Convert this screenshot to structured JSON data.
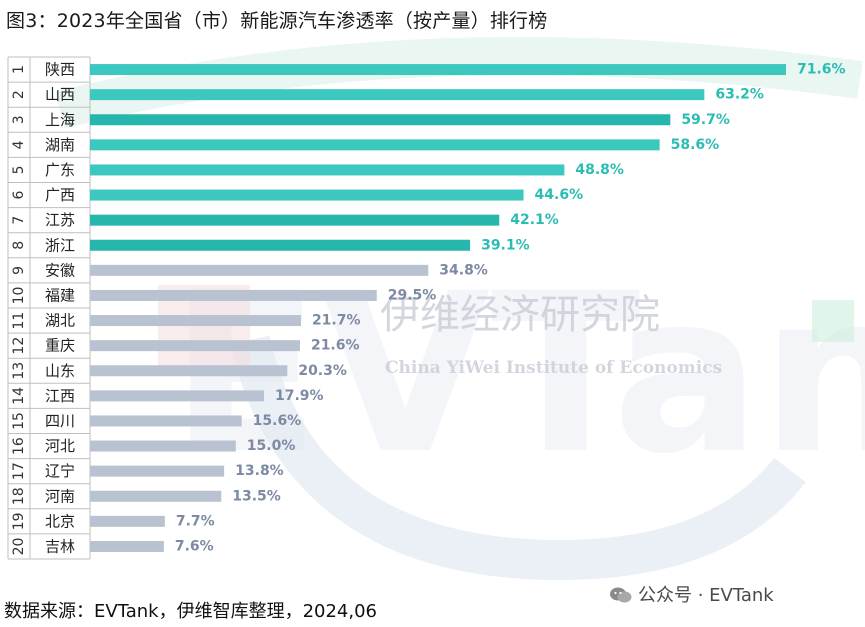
{
  "title": "图3：2023年全国省（市）新能源汽车渗透率（按产量）排行榜",
  "source": "数据来源：EVTank，伊维智库整理，2024,06",
  "wechat_label": "公众号 · EVTank",
  "watermark": {
    "logo": "EVTank",
    "cn_name": "伊维经济研究院",
    "en_name": "China YiWei Institute of Economics"
  },
  "colors": {
    "teal_light": "#3cc8be",
    "teal_dark": "#27b6ac",
    "gray": "#b9c2d0",
    "label_teal": "#2bbdb3",
    "label_gray": "#7d8aa3"
  },
  "chart_data": {
    "type": "bar",
    "orientation": "horizontal",
    "title": "图3：2023年全国省（市）新能源汽车渗透率（按产量）排行榜",
    "ranks": [
      "1",
      "2",
      "3",
      "4",
      "5",
      "6",
      "7",
      "8",
      "9",
      "10",
      "11",
      "12",
      "13",
      "14",
      "15",
      "16",
      "17",
      "18",
      "19",
      "20"
    ],
    "categories": [
      "陕西",
      "山西",
      "上海",
      "湖南",
      "广东",
      "广西",
      "江苏",
      "浙江",
      "安徽",
      "福建",
      "湖北",
      "重庆",
      "山东",
      "江西",
      "四川",
      "河北",
      "辽宁",
      "河南",
      "北京",
      "吉林"
    ],
    "values": [
      71.6,
      63.2,
      59.7,
      58.6,
      48.8,
      44.6,
      42.1,
      39.1,
      34.8,
      29.5,
      21.7,
      21.6,
      20.3,
      17.9,
      15.6,
      15.0,
      13.8,
      13.5,
      7.7,
      7.6
    ],
    "value_labels": [
      "71.6%",
      "63.2%",
      "59.7%",
      "58.6%",
      "48.8%",
      "44.6%",
      "42.1%",
      "39.1%",
      "34.8%",
      "29.5%",
      "21.7%",
      "21.6%",
      "20.3%",
      "17.9%",
      "15.6%",
      "15.0%",
      "13.8%",
      "13.5%",
      "7.7%",
      "7.6%"
    ],
    "highlight_top": 8,
    "xlim": [
      0,
      72
    ]
  }
}
